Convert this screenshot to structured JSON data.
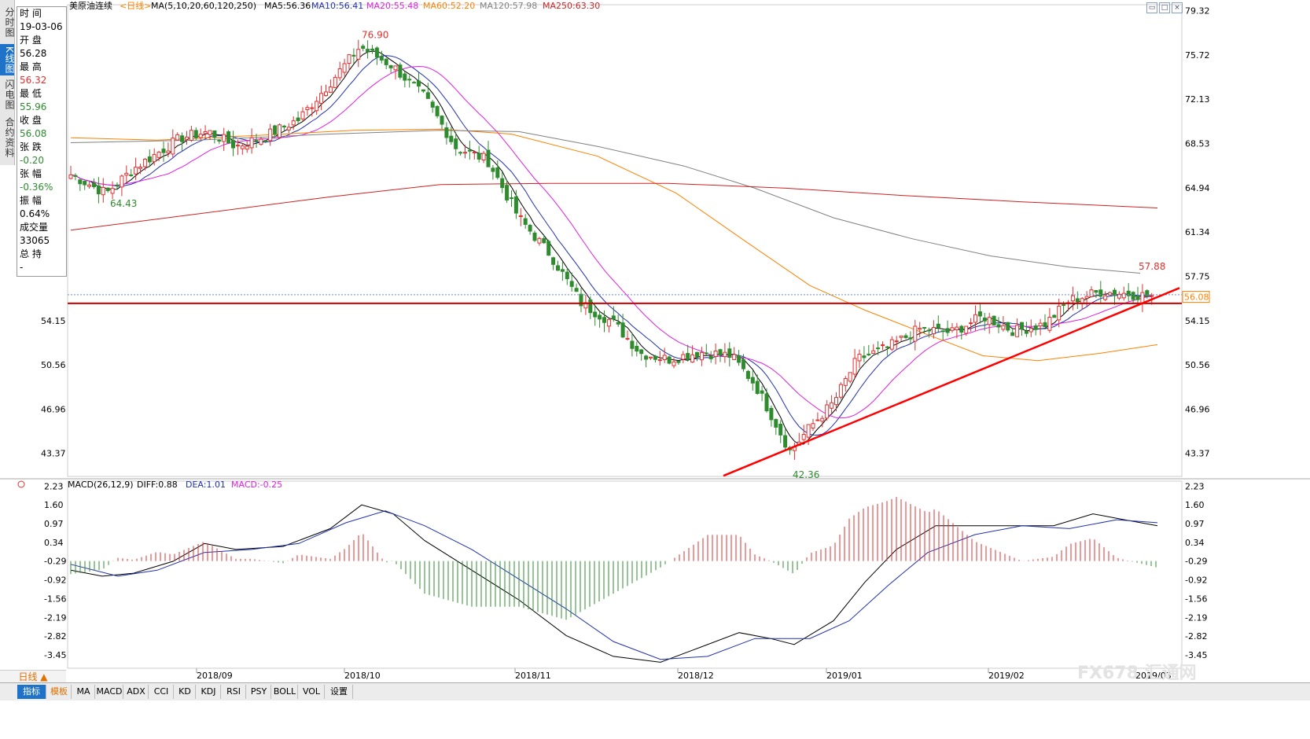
{
  "sidetabs": [
    "分时图",
    "K线图",
    "闪电图",
    "合约资料"
  ],
  "info": {
    "time_label": "时 间",
    "time": "19-03-06",
    "open_label": "开 盘",
    "open": "56.28",
    "high_label": "最 高",
    "high": "56.32",
    "low_label": "最 低",
    "low": "55.96",
    "close_label": "收 盘",
    "close": "56.08",
    "change_label": "张 跌",
    "change": "-0.20",
    "pct_label": "张 幅",
    "pct": "-0.36%",
    "amp_label": "振 幅",
    "amp": "0.64%",
    "vol_label": "成交量",
    "vol": "33065",
    "oi_label": "总 持",
    "oi": "-"
  },
  "header": {
    "title": "美原油连续",
    "period": "<日线>",
    "ma_params": "MA(5,10,20,60,120,250)",
    "ma5": "MA5:56.36",
    "ma10": "MA10:56.41",
    "ma20": "MA20:55.48",
    "ma60": "MA60:52.20",
    "ma120": "MA120:57.98",
    "ma250": "MA250:63.30"
  },
  "macd_header": {
    "params": "MACD(26,12,9)",
    "diff": "DIFF:0.88",
    "dea": "DEA:1.01",
    "macd": "MACD:-0.25"
  },
  "colors": {
    "up": "#e03030",
    "down": "#2e8b2e",
    "ma5": "#000000",
    "ma10": "#2030b0",
    "ma20": "#e020e0",
    "ma60": "#ff8000",
    "ma120": "#808080",
    "ma250": "#d02020",
    "diff": "#000000",
    "dea": "#2030b0",
    "trend": "#ff0000",
    "hline": "#cc0000"
  },
  "price_axis": {
    "ticks": [
      "79.32",
      "75.72",
      "72.13",
      "68.53",
      "64.94",
      "61.34",
      "57.75",
      "54.15",
      "50.56",
      "46.96",
      "43.37"
    ],
    "current": "56.08"
  },
  "macd_axis": {
    "ticks": [
      "2.23",
      "1.60",
      "0.97",
      "0.34",
      "-0.29",
      "-0.92",
      "-1.56",
      "-2.19",
      "-2.82",
      "-3.45"
    ]
  },
  "months": [
    "2018/09",
    "2018/10",
    "2018/11",
    "2018/12",
    "2019/01",
    "2019/02",
    "2019/03"
  ],
  "annotations": {
    "high": "76.90",
    "low1": "64.43",
    "low2": "42.36",
    "recent_high": "57.88"
  },
  "chart_data": {
    "type": "candlestick",
    "title": "美原油连续",
    "period": "日线",
    "ylim": [
      41.5,
      79.8
    ],
    "x_months": [
      "2018/09",
      "2018/10",
      "2018/11",
      "2018/12",
      "2019/01",
      "2019/02",
      "2019/03"
    ],
    "keypoints": [
      {
        "label": "2018-08 low",
        "price": 64.43
      },
      {
        "label": "2018-10 high",
        "price": 76.9
      },
      {
        "label": "2018-12 low",
        "price": 42.36
      },
      {
        "label": "2019-03 high",
        "price": 57.88
      },
      {
        "label": "2019-03-06 close",
        "price": 56.08
      }
    ],
    "last_bar": {
      "date": "19-03-06",
      "open": 56.28,
      "high": 56.32,
      "low": 55.96,
      "close": 56.08,
      "volume": 33065
    },
    "moving_averages": {
      "MA5": 56.36,
      "MA10": 56.41,
      "MA20": 55.48,
      "MA60": 52.2,
      "MA120": 57.98,
      "MA250": 63.3
    },
    "macd": {
      "DIFF": 0.88,
      "DEA": 1.01,
      "MACD": -0.25,
      "ylim": [
        -3.9,
        2.4
      ]
    }
  },
  "bottom_tabs": [
    "指标",
    "模板",
    "MA",
    "MACD",
    "ADX",
    "CCI",
    "KD",
    "KDJ",
    "RSI",
    "PSY",
    "BOLL",
    "VOL",
    "设置"
  ],
  "day_button": "日线 ▲",
  "logo": "FX678 汇通网"
}
